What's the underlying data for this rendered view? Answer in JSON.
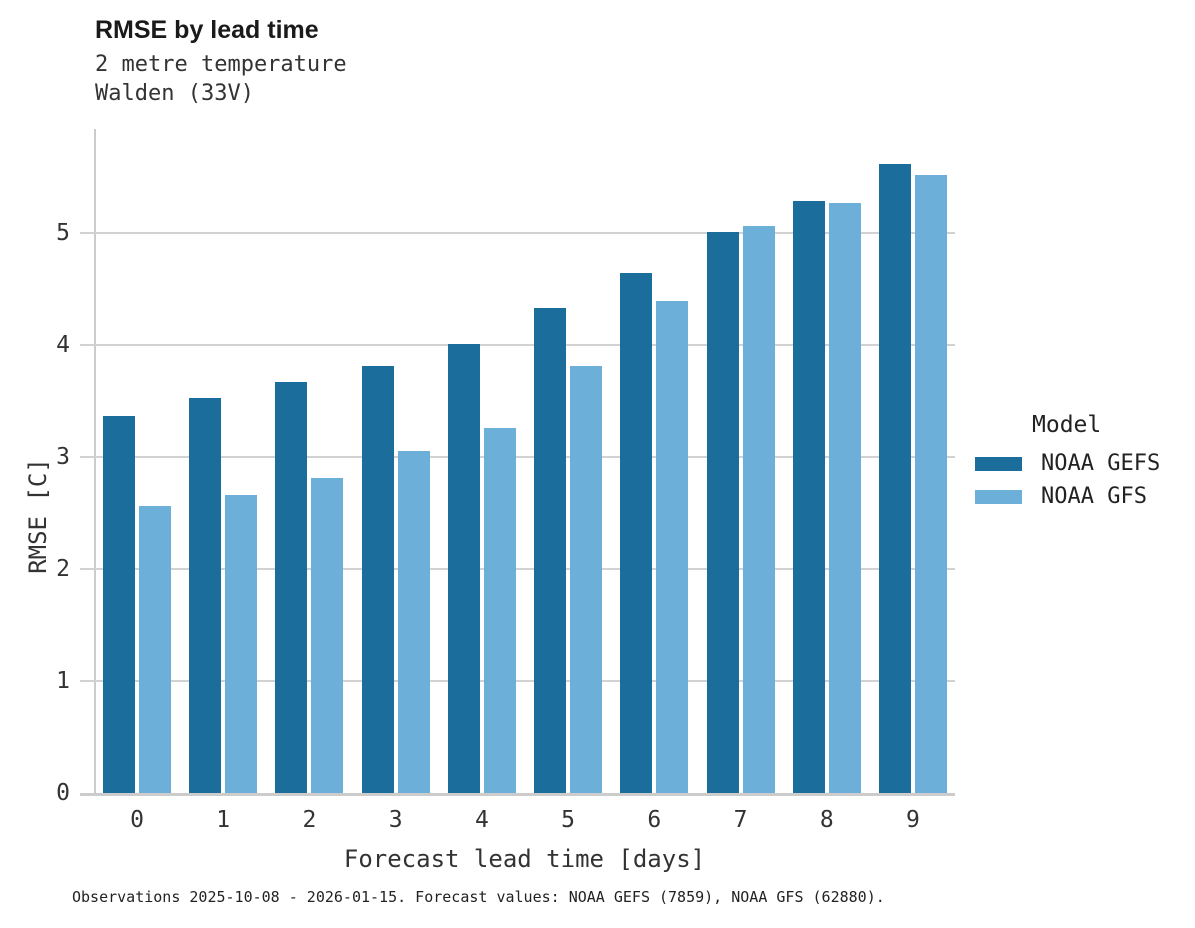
{
  "header": {
    "title": "RMSE by lead time",
    "subtitle_line1": "2 metre temperature",
    "subtitle_line2": "Walden (33V)"
  },
  "chart_data": {
    "type": "bar",
    "title": "RMSE by lead time",
    "subtitle_lines": [
      "2 metre temperature",
      "Walden (33V)"
    ],
    "categories": [
      0,
      1,
      2,
      3,
      4,
      5,
      6,
      7,
      8,
      9
    ],
    "series": [
      {
        "name": "NOAA GEFS",
        "color": "#1b6d9c",
        "values": [
          3.37,
          3.53,
          3.67,
          3.81,
          4.01,
          4.33,
          4.64,
          5.01,
          5.29,
          5.62
        ]
      },
      {
        "name": "NOAA GFS",
        "color": "#6cafd8",
        "values": [
          2.56,
          2.66,
          2.81,
          3.05,
          3.26,
          3.81,
          4.39,
          5.06,
          5.27,
          5.52
        ]
      }
    ],
    "xlabel": "Forecast lead time [days]",
    "ylabel": "RMSE [C]",
    "ylim": [
      0,
      5.93
    ],
    "yticks": [
      0,
      1,
      2,
      3,
      4,
      5
    ],
    "grid": "horizontal",
    "grid_color": "#d2d2d2",
    "legend_title": "Model",
    "legend_position": "right-center"
  },
  "caption": "Observations 2025-10-08 - 2026-01-15. Forecast values: NOAA GEFS (7859), NOAA GFS (62880)."
}
